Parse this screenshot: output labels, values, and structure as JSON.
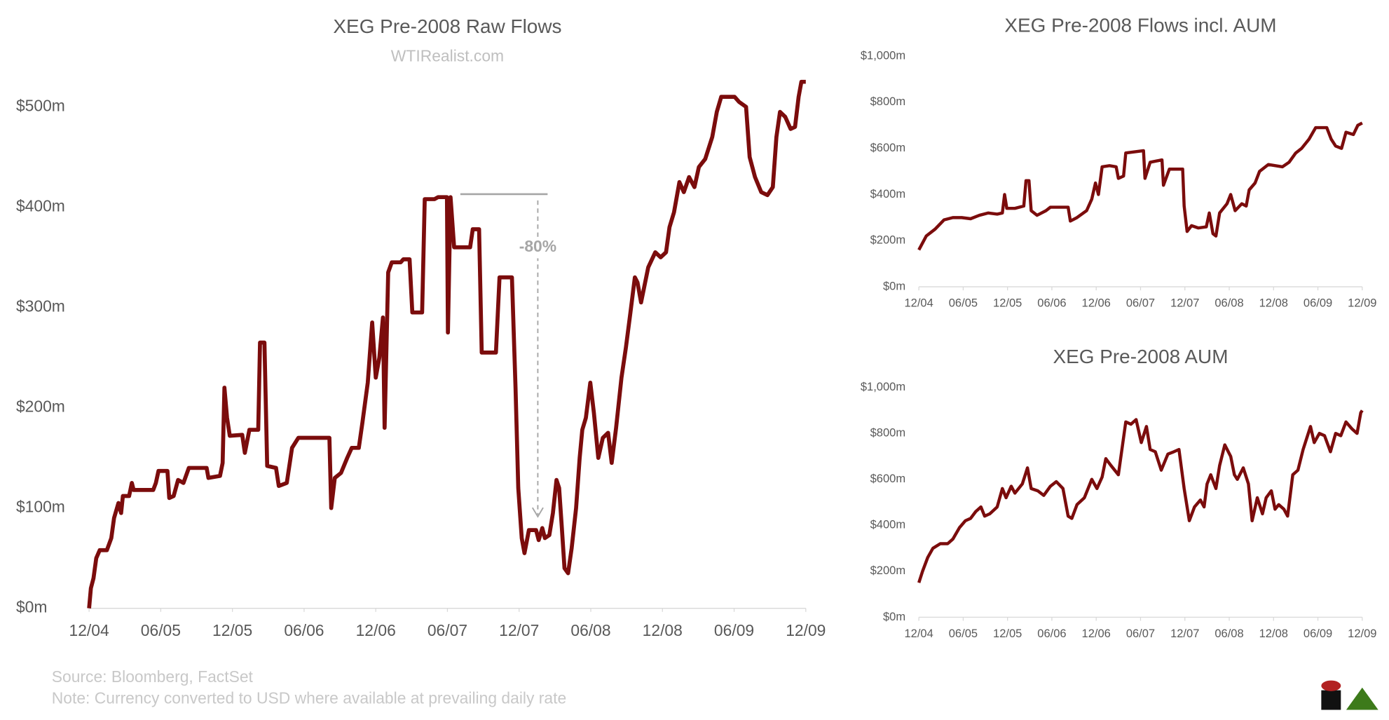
{
  "chart_data": [
    {
      "type": "line",
      "title": "XEG Pre-2008 Raw Flows",
      "subtitle": "WTIRealist.com",
      "color": "#7b0c0c",
      "annotation": "-80%",
      "xlim": [
        0,
        60
      ],
      "xticks": [
        {
          "value": 0,
          "label": "12/04"
        },
        {
          "value": 6,
          "label": "06/05"
        },
        {
          "value": 12,
          "label": "12/05"
        },
        {
          "value": 18,
          "label": "06/06"
        },
        {
          "value": 24,
          "label": "12/06"
        },
        {
          "value": 30,
          "label": "06/07"
        },
        {
          "value": 36,
          "label": "12/07"
        },
        {
          "value": 42,
          "label": "06/08"
        },
        {
          "value": 48,
          "label": "12/08"
        },
        {
          "value": 54,
          "label": "06/09"
        },
        {
          "value": 60,
          "label": "12/09"
        }
      ],
      "ylim": [
        0,
        520
      ],
      "yticks": [
        {
          "value": 0,
          "label": "$0m"
        },
        {
          "value": 100,
          "label": "$100m"
        },
        {
          "value": 200,
          "label": "$200m"
        },
        {
          "value": 300,
          "label": "$300m"
        },
        {
          "value": 400,
          "label": "$400m"
        },
        {
          "value": 500,
          "label": "$500m"
        }
      ],
      "x": [
        0,
        0.15,
        0.37,
        0.6,
        0.89,
        1.49,
        1.86,
        2.09,
        2.46,
        2.68,
        2.83,
        3.35,
        3.58,
        3.73,
        5.37,
        5.59,
        5.81,
        6.56,
        6.71,
        7.08,
        7.45,
        7.9,
        8.35,
        9.84,
        9.99,
        10.96,
        11.18,
        11.33,
        11.55,
        11.78,
        12.82,
        13.04,
        13.42,
        14.16,
        14.31,
        14.68,
        14.91,
        15.65,
        15.88,
        16.55,
        16.99,
        17.52,
        20.12,
        20.27,
        20.57,
        21.09,
        21.61,
        21.99,
        22.58,
        22.88,
        23.33,
        23.7,
        24,
        24.3,
        24.6,
        24.74,
        25.04,
        25.34,
        26.09,
        26.31,
        26.83,
        27.06,
        27.88,
        28.1,
        28.92,
        29.22,
        29.96,
        30.04,
        30.26,
        30.56,
        31.9,
        32.12,
        32.65,
        32.87,
        34.06,
        34.36,
        35.4,
        35.7,
        35.93,
        36.22,
        36.45,
        36.82,
        37.42,
        37.64,
        37.94,
        38.16,
        38.53,
        38.83,
        39.13,
        39.35,
        39.58,
        39.8,
        40.1,
        40.4,
        40.77,
        41.07,
        41.29,
        41.59,
        41.96,
        42.26,
        42.63,
        43.01,
        43.45,
        43.75,
        44.12,
        44.57,
        44.94,
        45.32,
        45.69,
        45.91,
        46.21,
        46.81,
        47.4,
        47.85,
        48.3,
        48.59,
        48.97,
        49.42,
        49.79,
        50.23,
        50.68,
        51.05,
        51.58,
        52.17,
        52.55,
        52.92,
        54.04,
        54.41,
        55,
        55.3,
        55.75,
        56.27,
        56.79,
        57.24,
        57.54,
        57.84,
        58.28,
        58.73,
        59.1,
        59.4,
        59.63,
        60
      ],
      "values": [
        0,
        20,
        30,
        50,
        58,
        58,
        70,
        90,
        105,
        95,
        112,
        112,
        125,
        118,
        118,
        125,
        137,
        137,
        110,
        112,
        128,
        125,
        140,
        140,
        130,
        132,
        145,
        220,
        190,
        172,
        173,
        155,
        178,
        178,
        265,
        265,
        142,
        140,
        122,
        125,
        160,
        170,
        170,
        100,
        130,
        135,
        150,
        160,
        160,
        185,
        225,
        285,
        230,
        250,
        290,
        180,
        335,
        345,
        345,
        348,
        348,
        295,
        295,
        408,
        408,
        410,
        410,
        275,
        410,
        360,
        360,
        378,
        378,
        255,
        255,
        330,
        330,
        220,
        120,
        70,
        55,
        78,
        78,
        68,
        80,
        70,
        73,
        95,
        128,
        120,
        80,
        40,
        35,
        60,
        100,
        150,
        178,
        190,
        225,
        195,
        150,
        170,
        175,
        145,
        180,
        230,
        260,
        295,
        330,
        325,
        305,
        340,
        355,
        350,
        355,
        380,
        395,
        425,
        415,
        430,
        420,
        440,
        448,
        470,
        495,
        510,
        510,
        505,
        500,
        450,
        430,
        415,
        412,
        420,
        470,
        495,
        490,
        478,
        480,
        510,
        525,
        525
      ]
    },
    {
      "type": "line",
      "title": "XEG Pre-2008 Flows incl. AUM",
      "color": "#7b0c0c",
      "xlim": [
        0,
        60
      ],
      "xticks": [
        {
          "value": 0,
          "label": "12/04"
        },
        {
          "value": 6,
          "label": "06/05"
        },
        {
          "value": 12,
          "label": "12/05"
        },
        {
          "value": 18,
          "label": "06/06"
        },
        {
          "value": 24,
          "label": "12/06"
        },
        {
          "value": 30,
          "label": "06/07"
        },
        {
          "value": 36,
          "label": "12/07"
        },
        {
          "value": 42,
          "label": "06/08"
        },
        {
          "value": 48,
          "label": "12/08"
        },
        {
          "value": 54,
          "label": "06/09"
        },
        {
          "value": 60,
          "label": "12/09"
        }
      ],
      "ylim": [
        0,
        1000
      ],
      "yticks": [
        {
          "value": 0,
          "label": "$0m"
        },
        {
          "value": 200,
          "label": "$200m"
        },
        {
          "value": 400,
          "label": "$400m"
        },
        {
          "value": 600,
          "label": "$600m"
        },
        {
          "value": 800,
          "label": "$800m"
        },
        {
          "value": 1000,
          "label": "$1,000m"
        }
      ],
      "x": [
        0,
        1.0,
        2.2,
        3.4,
        4.6,
        5.8,
        7.0,
        8.2,
        9.4,
        10.6,
        11.3,
        11.6,
        11.9,
        13.0,
        14.2,
        14.5,
        14.9,
        15.2,
        16.0,
        17.2,
        17.8,
        20.2,
        20.5,
        21.4,
        22.7,
        23.4,
        23.9,
        24.3,
        24.8,
        25.8,
        26.7,
        27.0,
        27.7,
        28.0,
        30.4,
        30.6,
        31.3,
        32.9,
        33.1,
        33.9,
        35.7,
        35.9,
        36.3,
        36.9,
        37.8,
        38.9,
        39.3,
        39.8,
        40.2,
        40.7,
        41.7,
        42.2,
        42.8,
        43.7,
        44.3,
        44.7,
        45.5,
        46.1,
        47.3,
        49.2,
        50.1,
        51.0,
        51.8,
        52.8,
        53.7,
        55.2,
        55.8,
        56.4,
        57.2,
        57.8,
        58.8,
        59.4,
        60.0
      ],
      "values": [
        160,
        220,
        250,
        290,
        300,
        300,
        295,
        310,
        320,
        315,
        320,
        400,
        340,
        340,
        350,
        460,
        460,
        330,
        310,
        330,
        345,
        345,
        285,
        300,
        330,
        380,
        450,
        400,
        520,
        525,
        520,
        470,
        480,
        580,
        590,
        470,
        540,
        550,
        440,
        510,
        510,
        350,
        240,
        265,
        255,
        260,
        320,
        230,
        220,
        320,
        360,
        400,
        330,
        360,
        350,
        420,
        450,
        500,
        530,
        520,
        540,
        580,
        600,
        640,
        690,
        690,
        640,
        610,
        600,
        670,
        660,
        700,
        710
      ]
    },
    {
      "type": "line",
      "title": "XEG Pre-2008 AUM",
      "color": "#7b0c0c",
      "xlim": [
        0,
        60
      ],
      "xticks": [
        {
          "value": 0,
          "label": "12/04"
        },
        {
          "value": 6,
          "label": "06/05"
        },
        {
          "value": 12,
          "label": "12/05"
        },
        {
          "value": 18,
          "label": "06/06"
        },
        {
          "value": 24,
          "label": "12/06"
        },
        {
          "value": 30,
          "label": "06/07"
        },
        {
          "value": 36,
          "label": "12/07"
        },
        {
          "value": 42,
          "label": "06/08"
        },
        {
          "value": 48,
          "label": "12/08"
        },
        {
          "value": 54,
          "label": "06/09"
        },
        {
          "value": 60,
          "label": "12/09"
        }
      ],
      "ylim": [
        0,
        1000
      ],
      "yticks": [
        {
          "value": 0,
          "label": "$0m"
        },
        {
          "value": 200,
          "label": "$200m"
        },
        {
          "value": 400,
          "label": "$400m"
        },
        {
          "value": 600,
          "label": "$600m"
        },
        {
          "value": 800,
          "label": "$800m"
        },
        {
          "value": 1000,
          "label": "$1,000m"
        }
      ],
      "x": [
        0,
        0.5,
        1.2,
        1.9,
        2.9,
        3.9,
        4.6,
        5.5,
        6.3,
        7.0,
        7.7,
        8.4,
        8.9,
        9.6,
        10.6,
        11.3,
        11.8,
        12.5,
        13.0,
        14.0,
        14.7,
        15.2,
        16.1,
        16.9,
        17.8,
        18.6,
        19.5,
        20.2,
        20.7,
        21.4,
        22.4,
        23.4,
        24.1,
        24.8,
        25.3,
        26.0,
        27.0,
        28.0,
        28.7,
        29.4,
        30.1,
        30.8,
        31.3,
        32.0,
        32.8,
        33.7,
        34.5,
        35.2,
        35.9,
        36.6,
        37.3,
        38.1,
        38.6,
        39.0,
        39.5,
        40.2,
        40.7,
        41.4,
        42.2,
        42.7,
        43.1,
        43.9,
        44.6,
        45.1,
        45.8,
        46.5,
        47.0,
        47.7,
        48.2,
        48.7,
        49.4,
        49.9,
        50.6,
        51.3,
        52.0,
        52.5,
        53.0,
        53.5,
        54.2,
        54.9,
        55.7,
        56.4,
        57.1,
        57.8,
        58.6,
        59.3,
        59.8,
        60.0
      ],
      "values": [
        150,
        200,
        260,
        300,
        320,
        320,
        340,
        390,
        420,
        430,
        460,
        480,
        440,
        450,
        480,
        560,
        520,
        570,
        540,
        580,
        650,
        560,
        550,
        530,
        570,
        590,
        560,
        440,
        430,
        490,
        520,
        600,
        560,
        610,
        690,
        660,
        620,
        850,
        840,
        860,
        760,
        830,
        730,
        720,
        640,
        710,
        720,
        730,
        560,
        420,
        480,
        510,
        480,
        580,
        620,
        560,
        660,
        750,
        700,
        620,
        600,
        650,
        580,
        420,
        520,
        450,
        520,
        550,
        470,
        490,
        470,
        440,
        620,
        640,
        730,
        780,
        830,
        760,
        800,
        790,
        720,
        800,
        790,
        850,
        820,
        800,
        890,
        900
      ]
    }
  ],
  "notes": [
    "Source: Bloomberg, FactSet",
    "Note: Currency converted to USD where available at prevailing daily rate"
  ]
}
